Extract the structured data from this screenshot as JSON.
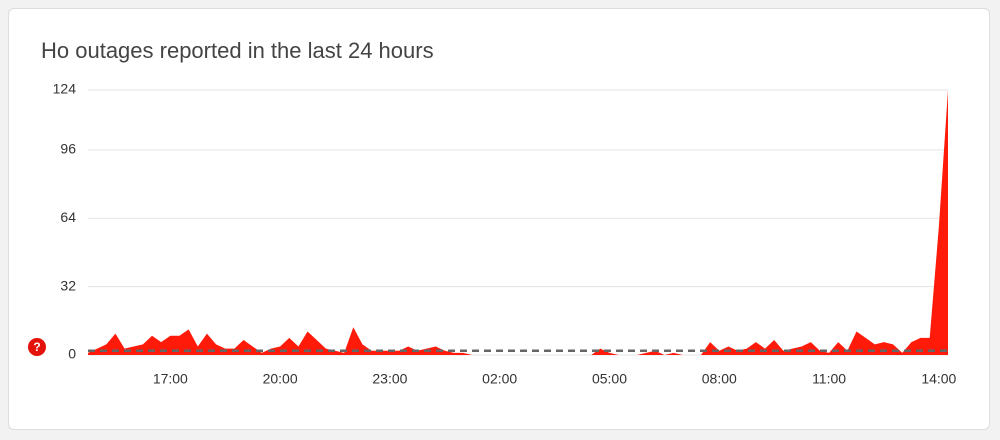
{
  "chart_data": {
    "type": "area",
    "title": "Ho outages reported in the last 24 hours",
    "help_icon": "?",
    "categories": [
      null,
      null,
      null,
      null,
      null,
      null,
      null,
      null,
      null,
      "17:00",
      null,
      null,
      null,
      null,
      null,
      null,
      null,
      null,
      null,
      null,
      null,
      "20:00",
      null,
      null,
      null,
      null,
      null,
      null,
      null,
      null,
      null,
      null,
      null,
      "23:00",
      null,
      null,
      null,
      null,
      null,
      null,
      null,
      null,
      null,
      null,
      null,
      "02:00",
      null,
      null,
      null,
      null,
      null,
      null,
      null,
      null,
      null,
      null,
      null,
      "05:00",
      null,
      null,
      null,
      null,
      null,
      null,
      null,
      null,
      null,
      null,
      null,
      "08:00",
      null,
      null,
      null,
      null,
      null,
      null,
      null,
      null,
      null,
      null,
      null,
      "11:00",
      null,
      null,
      null,
      null,
      null,
      null,
      null,
      null,
      null,
      null,
      null,
      "14:00",
      null
    ],
    "values": [
      1,
      3,
      5,
      10,
      3,
      4,
      5,
      9,
      6,
      9,
      9,
      12,
      4,
      10,
      5,
      3,
      3,
      7,
      4,
      1,
      3,
      4,
      8,
      4,
      11,
      7,
      3,
      2,
      1,
      13,
      5,
      2,
      2,
      2,
      2,
      4,
      2,
      3,
      4,
      2,
      1,
      1,
      0,
      0,
      0,
      0,
      0,
      0,
      0,
      0,
      0,
      0,
      0,
      0,
      0,
      0,
      3,
      1,
      0,
      0,
      0,
      1,
      2,
      0,
      1,
      0,
      0,
      0,
      6,
      2,
      4,
      2,
      3,
      6,
      3,
      7,
      2,
      3,
      4,
      6,
      2,
      1,
      6,
      2,
      11,
      8,
      5,
      6,
      5,
      1,
      6,
      8,
      8,
      60,
      124
    ],
    "color": "#ff1a0a",
    "reference_line": 2,
    "ylim": [
      0,
      124
    ],
    "yticks": [
      0,
      32,
      64,
      96,
      124
    ],
    "grid": true
  }
}
